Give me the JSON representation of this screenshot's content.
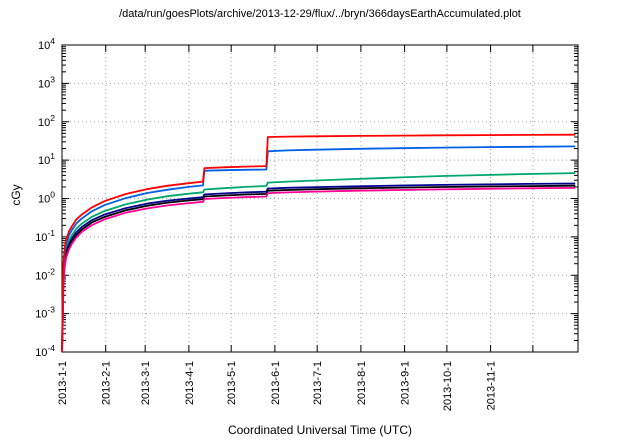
{
  "title": "/data/run/goesPlots/archive/2013-12-29/flux/../bryn/366daysEarthAccumulated.plot",
  "chart_data": {
    "type": "line",
    "title": "/data/run/goesPlots/archive/2013-12-29/flux/../bryn/366daysEarthAccumulated.plot",
    "xlabel": "Coordinated Universal Time (UTC)",
    "ylabel": "cGy",
    "grid": true,
    "legend": "none",
    "x_axis": {
      "unit": "days since 2013-01-01",
      "range": [
        0,
        366
      ],
      "ticks": [
        {
          "day": 0,
          "label": "2013-1-1"
        },
        {
          "day": 31,
          "label": "2013-2-1"
        },
        {
          "day": 59,
          "label": "2013-3-1"
        },
        {
          "day": 90,
          "label": "2013-4-1"
        },
        {
          "day": 120,
          "label": "2013-5-1"
        },
        {
          "day": 151,
          "label": "2013-6-1"
        },
        {
          "day": 181,
          "label": "2013-7-1"
        },
        {
          "day": 212,
          "label": "2013-8-1"
        },
        {
          "day": 243,
          "label": "2013-9-1"
        },
        {
          "day": 273,
          "label": "2013-10-1"
        },
        {
          "day": 304,
          "label": "2013-11-1"
        },
        {
          "day": 334,
          "label": ""
        }
      ]
    },
    "y_axis": {
      "scale": "log10",
      "exponent_range": [
        -4,
        4
      ],
      "tick_label_base": "10",
      "tick_exponents": [
        4,
        3,
        2,
        1,
        0,
        -1,
        -2,
        -3,
        -4
      ]
    },
    "colors": {
      "grid": "#a0a0a0",
      "axis": "#000000"
    },
    "series": [
      {
        "name": "green",
        "color": "#00a86b",
        "points": [
          [
            0,
            0.0001
          ],
          [
            0.5,
            0.001
          ],
          [
            1,
            0.01
          ],
          [
            2,
            0.03
          ],
          [
            3,
            0.05
          ],
          [
            5,
            0.08
          ],
          [
            7,
            0.11
          ],
          [
            10,
            0.16
          ],
          [
            14,
            0.22
          ],
          [
            21,
            0.33
          ],
          [
            30,
            0.47
          ],
          [
            45,
            0.7
          ],
          [
            60,
            0.93
          ],
          [
            75,
            1.15
          ],
          [
            90,
            1.33
          ],
          [
            100,
            1.45
          ],
          [
            101,
            1.72
          ],
          [
            115,
            1.85
          ],
          [
            130,
            2.0
          ],
          [
            145,
            2.12
          ],
          [
            146,
            2.6
          ],
          [
            160,
            2.75
          ],
          [
            180,
            2.95
          ],
          [
            210,
            3.25
          ],
          [
            240,
            3.55
          ],
          [
            270,
            3.85
          ],
          [
            300,
            4.1
          ],
          [
            330,
            4.35
          ],
          [
            364,
            4.6
          ]
        ]
      },
      {
        "name": "navy",
        "color": "#000090",
        "points": [
          [
            0,
            0.0001
          ],
          [
            0.5,
            0.0008
          ],
          [
            1,
            0.008
          ],
          [
            2,
            0.024
          ],
          [
            3,
            0.04
          ],
          [
            5,
            0.064
          ],
          [
            7,
            0.09
          ],
          [
            10,
            0.13
          ],
          [
            14,
            0.18
          ],
          [
            21,
            0.27
          ],
          [
            30,
            0.38
          ],
          [
            45,
            0.56
          ],
          [
            60,
            0.73
          ],
          [
            75,
            0.88
          ],
          [
            90,
            1.0
          ],
          [
            100,
            1.08
          ],
          [
            101,
            1.28
          ],
          [
            115,
            1.36
          ],
          [
            130,
            1.44
          ],
          [
            145,
            1.5
          ],
          [
            146,
            1.82
          ],
          [
            160,
            1.9
          ],
          [
            180,
            1.98
          ],
          [
            210,
            2.08
          ],
          [
            240,
            2.18
          ],
          [
            270,
            2.26
          ],
          [
            300,
            2.33
          ],
          [
            330,
            2.4
          ],
          [
            364,
            2.46
          ]
        ]
      },
      {
        "name": "black",
        "color": "#000000",
        "points": [
          [
            0,
            0.0001
          ],
          [
            0.5,
            0.0007
          ],
          [
            1,
            0.007
          ],
          [
            2,
            0.02
          ],
          [
            3,
            0.034
          ],
          [
            5,
            0.055
          ],
          [
            7,
            0.077
          ],
          [
            10,
            0.11
          ],
          [
            14,
            0.155
          ],
          [
            21,
            0.235
          ],
          [
            30,
            0.33
          ],
          [
            45,
            0.49
          ],
          [
            60,
            0.64
          ],
          [
            75,
            0.78
          ],
          [
            90,
            0.89
          ],
          [
            100,
            0.96
          ],
          [
            101,
            1.13
          ],
          [
            115,
            1.2
          ],
          [
            130,
            1.27
          ],
          [
            145,
            1.32
          ],
          [
            146,
            1.6
          ],
          [
            160,
            1.67
          ],
          [
            180,
            1.75
          ],
          [
            210,
            1.84
          ],
          [
            240,
            1.92
          ],
          [
            270,
            1.99
          ],
          [
            300,
            2.05
          ],
          [
            330,
            2.11
          ],
          [
            364,
            2.16
          ]
        ]
      },
      {
        "name": "magenta",
        "color": "#ff0095",
        "points": [
          [
            0,
            0.0001
          ],
          [
            0.5,
            0.0006
          ],
          [
            1,
            0.006
          ],
          [
            2,
            0.017
          ],
          [
            3,
            0.029
          ],
          [
            5,
            0.047
          ],
          [
            7,
            0.066
          ],
          [
            10,
            0.095
          ],
          [
            14,
            0.135
          ],
          [
            21,
            0.2
          ],
          [
            30,
            0.285
          ],
          [
            45,
            0.425
          ],
          [
            60,
            0.55
          ],
          [
            75,
            0.66
          ],
          [
            90,
            0.76
          ],
          [
            100,
            0.82
          ],
          [
            101,
            0.97
          ],
          [
            115,
            1.03
          ],
          [
            130,
            1.09
          ],
          [
            145,
            1.13
          ],
          [
            146,
            1.38
          ],
          [
            160,
            1.44
          ],
          [
            180,
            1.51
          ],
          [
            210,
            1.6
          ],
          [
            240,
            1.67
          ],
          [
            270,
            1.73
          ],
          [
            300,
            1.79
          ],
          [
            330,
            1.84
          ],
          [
            364,
            1.89
          ]
        ]
      },
      {
        "name": "blue",
        "color": "#0060e8",
        "points": [
          [
            0,
            0.0001
          ],
          [
            0.5,
            0.0015
          ],
          [
            1,
            0.015
          ],
          [
            2,
            0.042
          ],
          [
            3,
            0.066
          ],
          [
            5,
            0.11
          ],
          [
            7,
            0.15
          ],
          [
            10,
            0.22
          ],
          [
            14,
            0.3
          ],
          [
            21,
            0.46
          ],
          [
            30,
            0.67
          ],
          [
            45,
            1.02
          ],
          [
            60,
            1.38
          ],
          [
            75,
            1.7
          ],
          [
            90,
            2.0
          ],
          [
            100,
            2.2
          ],
          [
            101,
            5.3
          ],
          [
            115,
            5.45
          ],
          [
            130,
            5.6
          ],
          [
            145,
            5.7
          ],
          [
            146,
            17
          ],
          [
            160,
            17.9
          ],
          [
            180,
            18.7
          ],
          [
            210,
            19.7
          ],
          [
            240,
            20.5
          ],
          [
            270,
            21.2
          ],
          [
            300,
            21.8
          ],
          [
            330,
            22.3
          ],
          [
            364,
            22.8
          ]
        ]
      },
      {
        "name": "red",
        "color": "#ff0000",
        "points": [
          [
            0,
            0.0001
          ],
          [
            0.5,
            0.002
          ],
          [
            1,
            0.02
          ],
          [
            2,
            0.055
          ],
          [
            3,
            0.085
          ],
          [
            5,
            0.14
          ],
          [
            7,
            0.19
          ],
          [
            10,
            0.28
          ],
          [
            14,
            0.38
          ],
          [
            21,
            0.58
          ],
          [
            30,
            0.85
          ],
          [
            45,
            1.3
          ],
          [
            60,
            1.75
          ],
          [
            75,
            2.15
          ],
          [
            90,
            2.5
          ],
          [
            100,
            2.75
          ],
          [
            101,
            6.2
          ],
          [
            115,
            6.5
          ],
          [
            130,
            6.8
          ],
          [
            145,
            7.0
          ],
          [
            146,
            40
          ],
          [
            160,
            41
          ],
          [
            180,
            41.8
          ],
          [
            210,
            42.8
          ],
          [
            240,
            43.6
          ],
          [
            270,
            44.3
          ],
          [
            300,
            44.9
          ],
          [
            330,
            45.4
          ],
          [
            364,
            46
          ]
        ]
      }
    ]
  }
}
